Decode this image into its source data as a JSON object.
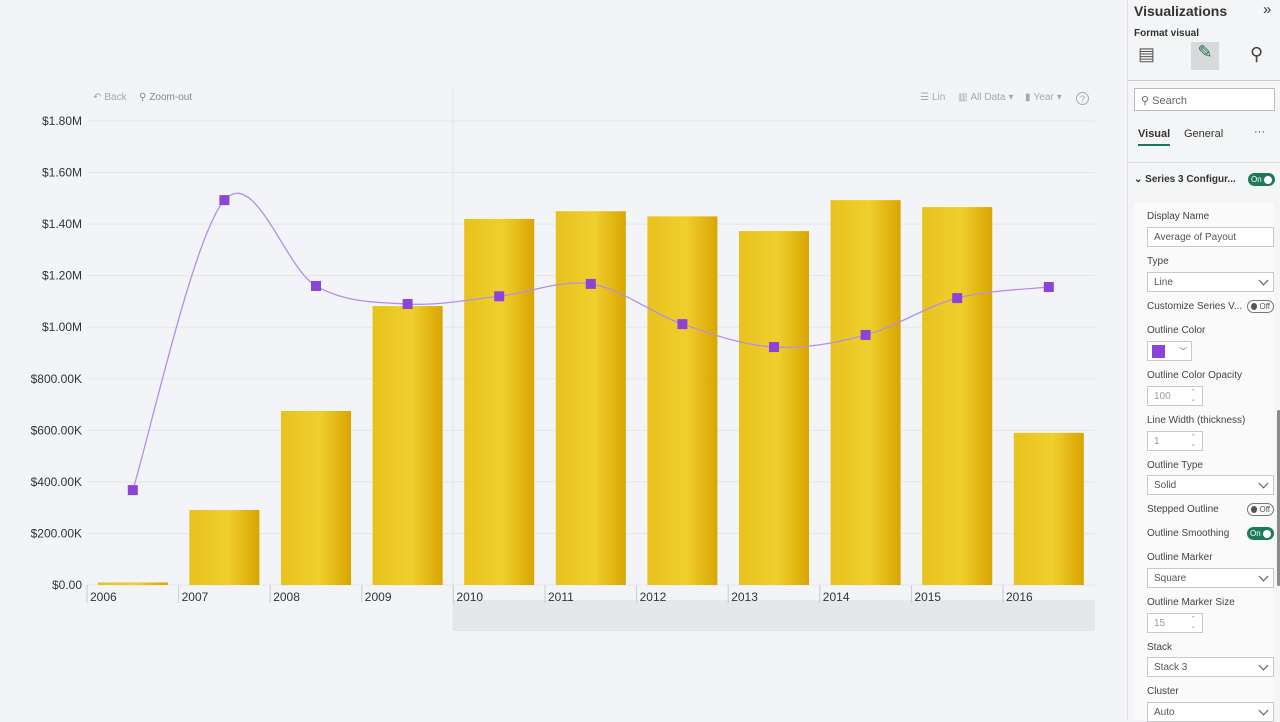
{
  "toolbar": {
    "back": "Back",
    "zoom_out": "Zoom-out",
    "scale": "Lin",
    "data_filter": "All Data",
    "level": "Year",
    "help": "?"
  },
  "chart_data": {
    "type": "bar+line",
    "categories": [
      "2006",
      "2007",
      "2008",
      "2009",
      "2010",
      "2011",
      "2012",
      "2013",
      "2014",
      "2015",
      "2016"
    ],
    "series": [
      {
        "type": "bar",
        "color": "#e8c21e",
        "values": [
          10000,
          291000,
          675000,
          1082000,
          1420000,
          1450000,
          1430000,
          1373000,
          1493000,
          1466000,
          590000
        ]
      },
      {
        "name": "Average of Payout",
        "type": "line",
        "smooth": true,
        "marker": "square",
        "color": "#8c44d8",
        "values": [
          368000,
          1493000,
          1160000,
          1090000,
          1120000,
          1168000,
          1012000,
          923000,
          970000,
          1113000,
          1156000
        ]
      }
    ],
    "ylim": [
      0,
      1800000
    ],
    "yticks": [
      "$0.00",
      "$200.00K",
      "$400.00K",
      "$600.00K",
      "$800.00K",
      "$1.00M",
      "$1.20M",
      "$1.40M",
      "$1.60M",
      "$1.80M"
    ],
    "grid": true
  },
  "panel": {
    "title": "Visualizations",
    "subtitle": "Format visual",
    "search_placeholder": "Search",
    "tabs": [
      "Visual",
      "General"
    ],
    "more": "···",
    "section": "Series 3 Configur...",
    "section_toggle": "On",
    "display_name_label": "Display Name",
    "display_name": "Average of Payout",
    "type_label": "Type",
    "type": "Line",
    "customize_label": "Customize Series V...",
    "customize_toggle": "Off",
    "outline_color_label": "Outline Color",
    "outline_color": "#8c44d8",
    "opacity_label": "Outline Color Opacity",
    "opacity": "100",
    "line_width_label": "Line Width (thickness)",
    "line_width": "1",
    "outline_type_label": "Outline Type",
    "outline_type": "Solid",
    "stepped_label": "Stepped Outline",
    "stepped_toggle": "Off",
    "smoothing_label": "Outline Smoothing",
    "smoothing_toggle": "On",
    "marker_label": "Outline Marker",
    "marker": "Square",
    "marker_size_label": "Outline Marker Size",
    "marker_size": "15",
    "stack_label": "Stack",
    "stack": "Stack 3",
    "cluster_label": "Cluster",
    "cluster": "Auto"
  }
}
